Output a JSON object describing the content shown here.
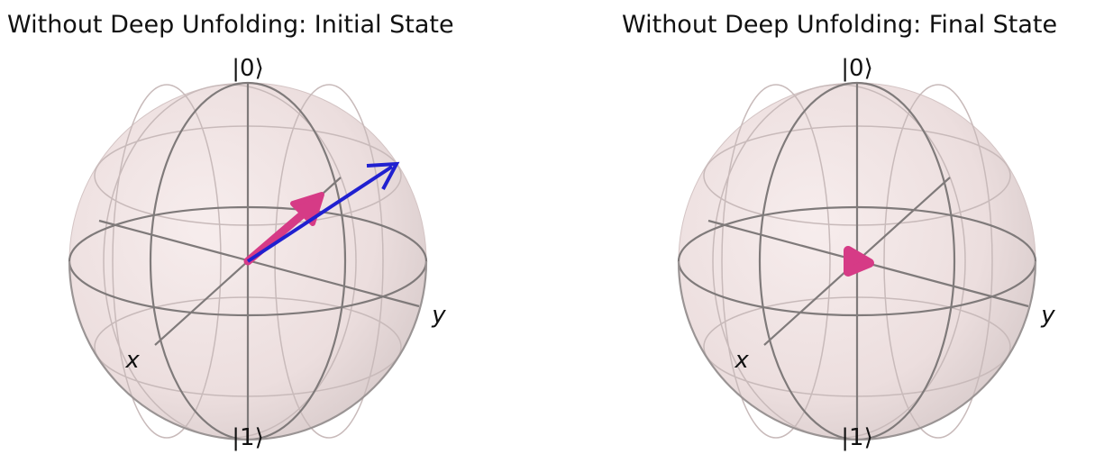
{
  "panels": [
    {
      "title": "Without Deep Unfolding: Initial State",
      "labels": {
        "top": "|0⟩",
        "bottom": "|1⟩",
        "x": "x",
        "y": "y"
      },
      "vectors": [
        {
          "name": "blue-state-arrow",
          "color": "#2020d0"
        },
        {
          "name": "pink-state-arrow",
          "color": "#d63b86"
        }
      ]
    },
    {
      "title": "Without Deep Unfolding: Final State",
      "labels": {
        "top": "|0⟩",
        "bottom": "|1⟩",
        "x": "x",
        "y": "y"
      },
      "vectors": [
        {
          "name": "pink-state-point",
          "color": "#d63b86"
        }
      ]
    }
  ],
  "colors": {
    "sphere_fill": "#efe2e2",
    "wire": "#7a7a7a",
    "axis": "#555555"
  }
}
